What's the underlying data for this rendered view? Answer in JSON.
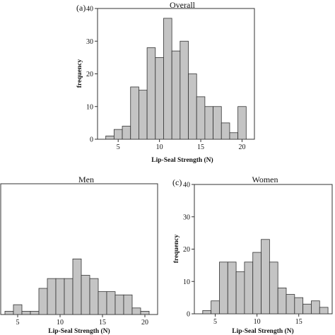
{
  "chart_data": [
    {
      "type": "bar",
      "panel_label": "(a)",
      "title": "Overall",
      "xlabel": "Lip-Seal Strength (N)",
      "ylabel": "frequency",
      "x": [
        4,
        5,
        6,
        7,
        8,
        9,
        10,
        11,
        12,
        13,
        14,
        15,
        16,
        17,
        18,
        19,
        20
      ],
      "values": [
        1,
        3,
        4,
        16,
        15,
        28,
        25,
        37,
        27,
        30,
        20,
        13,
        10,
        10,
        5,
        2,
        10
      ],
      "xticks": [
        5,
        10,
        15,
        20
      ],
      "xlim": [
        2.5,
        21.5
      ],
      "ylim": [
        0,
        40
      ],
      "yticks": [
        0,
        10,
        20,
        30,
        40
      ],
      "colors": {
        "bar_fill": "#c4c4c4",
        "bar_stroke": "#333333"
      }
    },
    {
      "type": "bar",
      "panel_label": "",
      "title": "Men",
      "xlabel": "Lip-Seal Strength (N)",
      "ylabel": "",
      "x": [
        4,
        5,
        6,
        7,
        8,
        9,
        10,
        11,
        12,
        13,
        14,
        15,
        16,
        17,
        18,
        19,
        20
      ],
      "values": [
        1,
        3,
        1,
        1,
        8,
        11,
        11,
        11,
        17,
        12,
        11,
        7,
        7,
        6,
        6,
        2,
        1
      ],
      "xticks": [
        5,
        10,
        15,
        20
      ],
      "xlim": [
        3,
        21.5
      ],
      "ylim": [
        0,
        40
      ],
      "yticks": [],
      "colors": {
        "bar_fill": "#c4c4c4",
        "bar_stroke": "#333333"
      }
    },
    {
      "type": "bar",
      "panel_label": "(c)",
      "title": "Women",
      "xlabel": "Lip-Seal Strength (N)",
      "ylabel": "frequency",
      "x": [
        4,
        5,
        6,
        7,
        8,
        9,
        10,
        11,
        12,
        13,
        14,
        15,
        16,
        17,
        18
      ],
      "values": [
        1,
        4,
        16,
        16,
        13,
        16,
        19,
        23,
        16,
        8,
        6,
        5,
        3,
        4,
        2
      ],
      "xticks": [
        5,
        10,
        15
      ],
      "xlim": [
        2.5,
        19
      ],
      "ylim": [
        0,
        40
      ],
      "yticks": [
        0,
        10,
        20,
        30,
        40
      ],
      "colors": {
        "bar_fill": "#c4c4c4",
        "bar_stroke": "#333333"
      }
    }
  ]
}
